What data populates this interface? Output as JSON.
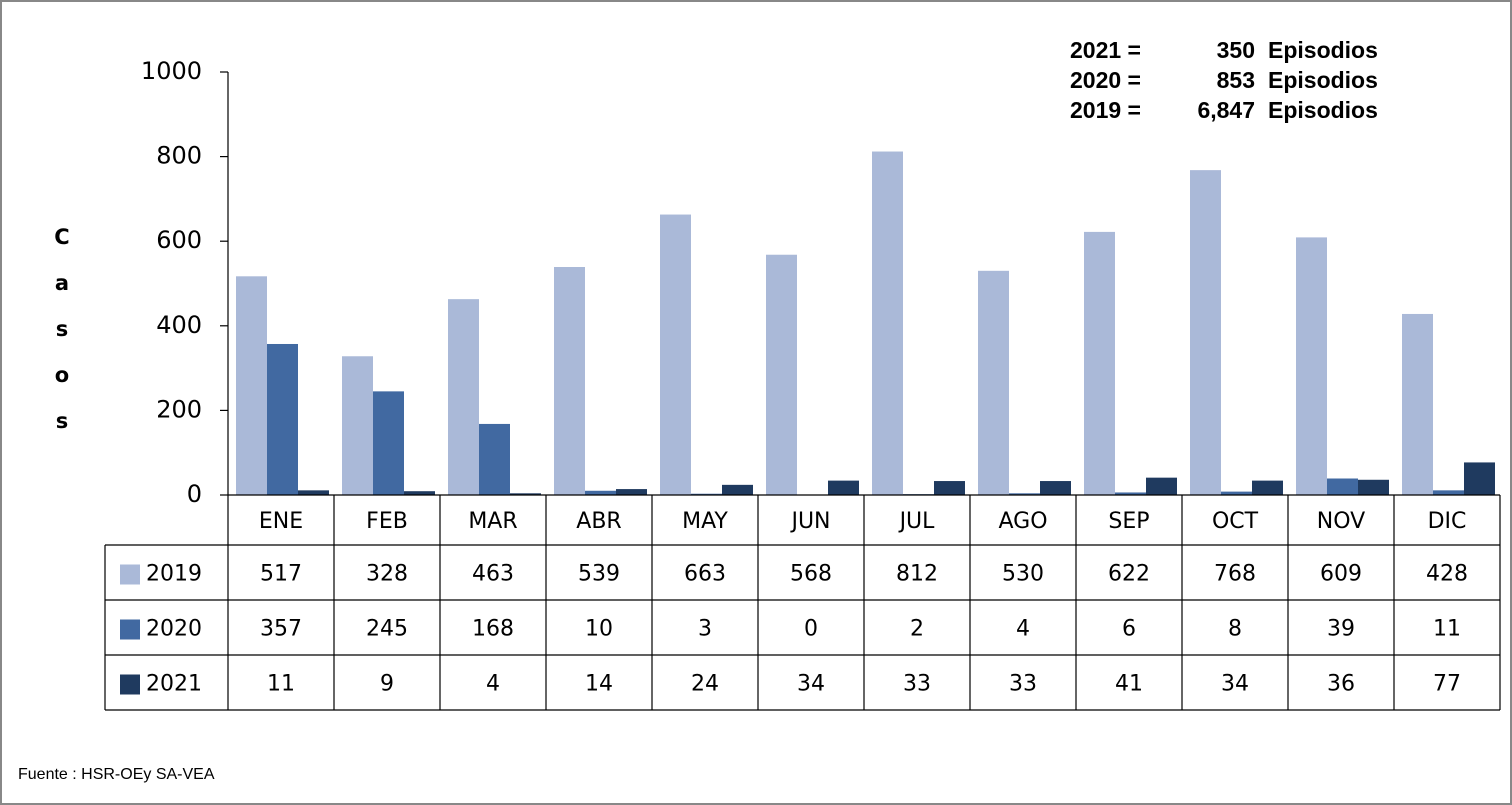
{
  "chart_data": {
    "type": "bar",
    "y_label": "Casos",
    "categories": [
      "ENE",
      "FEB",
      "MAR",
      "ABR",
      "MAY",
      "JUN",
      "JUL",
      "AGO",
      "SEP",
      "OCT",
      "NOV",
      "DIC"
    ],
    "series": [
      {
        "name": "2019",
        "color": "#aab9d8",
        "values": [
          517,
          328,
          463,
          539,
          663,
          568,
          812,
          530,
          622,
          768,
          609,
          428
        ]
      },
      {
        "name": "2020",
        "color": "#4169a1",
        "values": [
          357,
          245,
          168,
          10,
          3,
          0,
          2,
          4,
          6,
          8,
          39,
          11
        ]
      },
      {
        "name": "2021",
        "color": "#1f3a5f",
        "values": [
          11,
          9,
          4,
          14,
          24,
          34,
          33,
          33,
          41,
          34,
          36,
          77
        ]
      }
    ],
    "ylim": [
      0,
      1000
    ],
    "yticks": [
      0,
      200,
      400,
      600,
      800,
      1000
    ],
    "grid": false,
    "annotations": [
      {
        "label": "2021 =",
        "value": "350",
        "unit": "Episodios"
      },
      {
        "label": "2020 =",
        "value": "853",
        "unit": "Episodios"
      },
      {
        "label": "2019 =",
        "value": "6,847",
        "unit": "Episodios"
      }
    ],
    "source": "Fuente : HSR-OEy SA-VEA"
  }
}
